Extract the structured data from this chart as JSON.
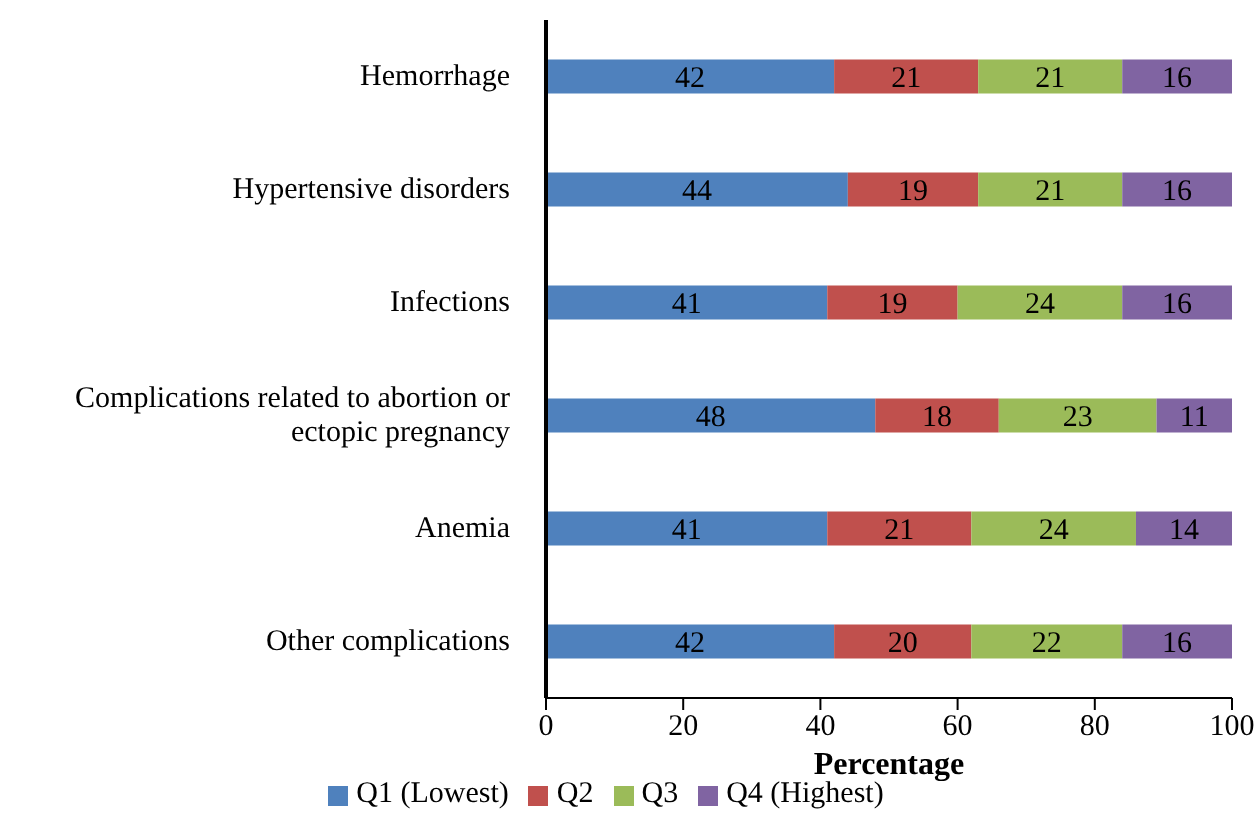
{
  "chart_data": {
    "type": "bar",
    "orientation": "horizontal",
    "stacked": true,
    "categories": [
      "Hemorrhage",
      "Hypertensive disorders",
      "Infections",
      "Complications related to abortion or ectopic pregnancy",
      "Anemia",
      "Other complications"
    ],
    "series": [
      {
        "name": "Q1 (Lowest)",
        "color": "#4f81bd",
        "values": [
          42,
          44,
          41,
          48,
          41,
          42
        ]
      },
      {
        "name": "Q2",
        "color": "#c0504d",
        "values": [
          21,
          19,
          19,
          18,
          21,
          20
        ]
      },
      {
        "name": "Q3",
        "color": "#9bbb59",
        "values": [
          21,
          21,
          24,
          23,
          24,
          22
        ]
      },
      {
        "name": "Q4 (Highest)",
        "color": "#8064a2",
        "values": [
          16,
          16,
          16,
          11,
          14,
          16
        ]
      }
    ],
    "xlabel": "Percentage",
    "xlim": [
      0,
      100
    ],
    "xticks": [
      0,
      20,
      40,
      60,
      80,
      100
    ],
    "data_labels": true,
    "grid": false,
    "legend": "bottom"
  }
}
